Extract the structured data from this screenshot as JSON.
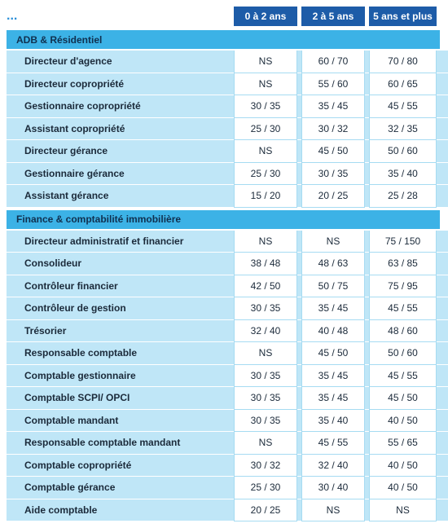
{
  "header": {
    "marker": "...",
    "columns": [
      "0 à 2 ans",
      "2 à 5 ans",
      "5 ans et plus"
    ]
  },
  "sections": [
    {
      "title": "ADB & Résidentiel",
      "rows": [
        {
          "label": "Directeur d'agence",
          "values": [
            "NS",
            "60 / 70",
            "70 / 80"
          ]
        },
        {
          "label": "Directeur copropriété",
          "values": [
            "NS",
            "55 / 60",
            "60 / 65"
          ]
        },
        {
          "label": "Gestionnaire copropriété",
          "values": [
            "30 / 35",
            "35 / 45",
            "45 / 55"
          ]
        },
        {
          "label": "Assistant copropriété",
          "values": [
            "25 / 30",
            "30 / 32",
            "32 / 35"
          ]
        },
        {
          "label": "Directeur gérance",
          "values": [
            "NS",
            "45 / 50",
            "50 / 60"
          ]
        },
        {
          "label": "Gestionnaire gérance",
          "values": [
            "25 / 30",
            "30 / 35",
            "35 / 40"
          ]
        },
        {
          "label": "Assistant gérance",
          "values": [
            "15 / 20",
            "20 / 25",
            "25 / 28"
          ]
        }
      ]
    },
    {
      "title": "Finance & comptabilité immobilière",
      "rows": [
        {
          "label": "Directeur administratif et financier",
          "values": [
            "NS",
            "NS",
            "75 / 150"
          ]
        },
        {
          "label": "Consolideur",
          "values": [
            "38 / 48",
            "48 / 63",
            "63 / 85"
          ]
        },
        {
          "label": "Contrôleur financier",
          "values": [
            "42 / 50",
            "50 / 75",
            "75 / 95"
          ]
        },
        {
          "label": "Contrôleur de gestion",
          "values": [
            "30 / 35",
            "35 / 45",
            "45 / 55"
          ]
        },
        {
          "label": "Trésorier",
          "values": [
            "32 / 40",
            "40 / 48",
            "48 / 60"
          ]
        },
        {
          "label": "Responsable comptable",
          "values": [
            "NS",
            "45 / 50",
            "50 / 60"
          ]
        },
        {
          "label": "Comptable gestionnaire",
          "values": [
            "30 / 35",
            "35 / 45",
            "45 / 55"
          ]
        },
        {
          "label": "Comptable SCPI/ OPCI",
          "values": [
            "30 / 35",
            "35 / 45",
            "45 / 50"
          ]
        },
        {
          "label": "Comptable mandant",
          "values": [
            "30 / 35",
            "35 / 40",
            "40 / 50"
          ]
        },
        {
          "label": "Responsable comptable mandant",
          "values": [
            "NS",
            "45 / 55",
            "55 / 65"
          ]
        },
        {
          "label": "Comptable copropriété",
          "values": [
            "30 / 32",
            "32 / 40",
            "40 / 50"
          ]
        },
        {
          "label": "Comptable gérance",
          "values": [
            "25 / 30",
            "30 / 40",
            "40 / 50"
          ]
        },
        {
          "label": "Aide comptable",
          "values": [
            "20 / 25",
            "NS",
            "NS"
          ]
        }
      ]
    }
  ]
}
